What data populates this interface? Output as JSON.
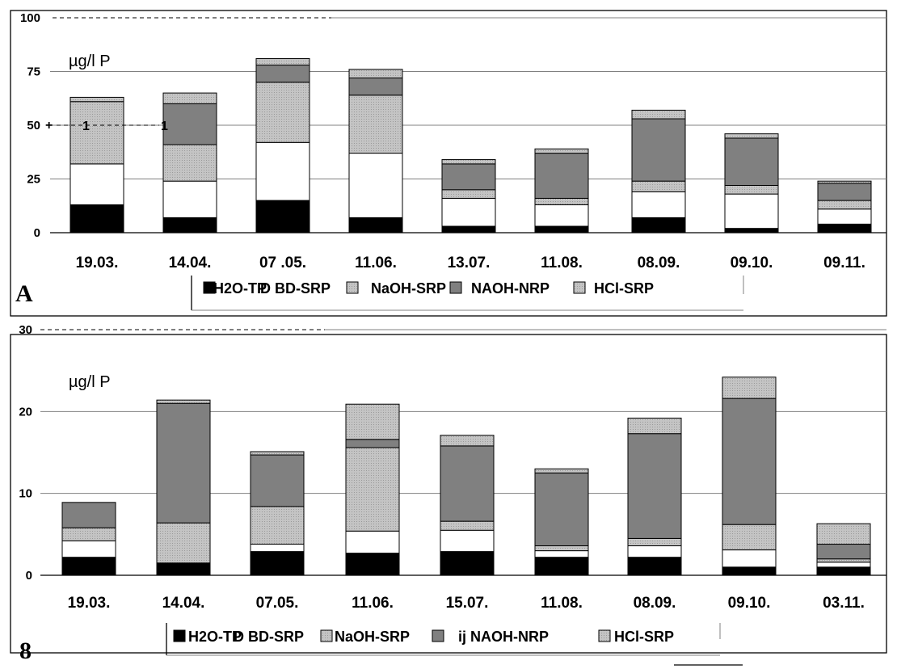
{
  "chart_data": [
    {
      "type": "bar",
      "stacked": true,
      "panel_label": "A",
      "unit_label": "µg/l P",
      "title": "",
      "xlabel": "",
      "ylabel": "",
      "ylim": [
        0,
        100
      ],
      "yticks": [
        "0",
        "25",
        "50",
        "75",
        "100"
      ],
      "grid": true,
      "legend_position": "bottom",
      "categories": [
        "19.03.",
        "14.04.",
        "07 .05.",
        "11.06.",
        "13.07.",
        "11.08.",
        "08.09.",
        "09.10.",
        "09.11."
      ],
      "series": [
        {
          "name": "H2O-TP",
          "color": "#000000",
          "values": [
            13,
            7,
            15,
            7,
            3,
            3,
            7,
            2,
            4
          ]
        },
        {
          "name": "BD-SRP",
          "color": "#ffffff",
          "values": [
            19,
            17,
            27,
            30,
            13,
            10,
            12,
            16,
            7
          ]
        },
        {
          "name": "NaOH-SRP",
          "color": "#c0c0c0",
          "values": [
            29,
            17,
            28,
            27,
            4,
            3,
            5,
            4,
            4
          ]
        },
        {
          "name": "NAOH-NRP",
          "color": "#808080",
          "values": [
            0,
            19,
            8,
            8,
            12,
            21,
            29,
            22,
            8
          ]
        },
        {
          "name": "HCl-SRP",
          "color": "#c0c0c0",
          "values": [
            2,
            5,
            3,
            4,
            2,
            2,
            4,
            2,
            1
          ]
        }
      ],
      "legend_labels": [
        "H2O-TP",
        "D BD-SRP",
        "NaOH-SRP",
        "NAOH-NRP",
        "HCl-SRP"
      ],
      "annotation": {
        "label_left": "1",
        "label_right": "1",
        "y_value": 50
      }
    },
    {
      "type": "bar",
      "stacked": true,
      "panel_label": "8",
      "unit_label": "µg/l P",
      "title": "",
      "xlabel": "",
      "ylabel": "",
      "ylim": [
        0,
        30
      ],
      "yticks": [
        "0",
        "10",
        "20",
        "30"
      ],
      "grid": true,
      "legend_position": "bottom",
      "categories": [
        "19.03.",
        "14.04.",
        "07.05.",
        "11.06.",
        "15.07.",
        "11.08.",
        "08.09.",
        "09.10.",
        "03.11."
      ],
      "series": [
        {
          "name": "H2O-TP",
          "color": "#000000",
          "values": [
            2.2,
            1.5,
            2.9,
            2.7,
            2.9,
            2.2,
            2.2,
            1.0,
            1.0
          ]
        },
        {
          "name": "BD-SRP",
          "color": "#ffffff",
          "values": [
            2.0,
            0,
            0.9,
            2.7,
            2.6,
            0.8,
            1.4,
            2.1,
            0.6
          ]
        },
        {
          "name": "NaOH-SRP",
          "color": "#c0c0c0",
          "values": [
            1.6,
            4.9,
            4.6,
            10.2,
            1.1,
            0.6,
            0.9,
            3.1,
            0.4
          ]
        },
        {
          "name": "NAOH-NRP",
          "color": "#808080",
          "values": [
            3.1,
            14.6,
            6.3,
            1.0,
            9.2,
            8.9,
            12.8,
            15.4,
            1.8
          ]
        },
        {
          "name": "HCl-SRP",
          "color": "#c0c0c0",
          "values": [
            0,
            0.4,
            0.4,
            4.3,
            1.3,
            0.5,
            1.9,
            2.6,
            2.5
          ]
        }
      ],
      "legend_labels": [
        "H2O-TP",
        "D BD-SRP",
        "NaOH-SRP",
        "ij NAOH-NRP",
        "HCl-SRP"
      ]
    }
  ]
}
